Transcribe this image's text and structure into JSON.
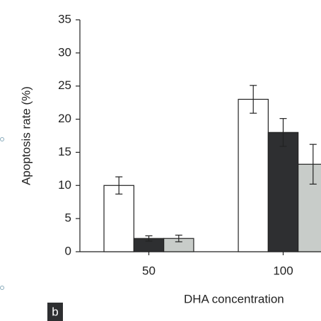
{
  "chart_data": {
    "type": "bar",
    "y_label": "Apoptosis rate (%)",
    "x_label": "DHA concentration",
    "panel_label": "b",
    "categories": [
      "50",
      "100"
    ],
    "series": [
      {
        "color": "#ffffff",
        "values": [
          10,
          23
        ],
        "errors": [
          1.3,
          2.1
        ]
      },
      {
        "color": "#2e2f31",
        "values": [
          2,
          18
        ],
        "errors": [
          0.4,
          2.1
        ]
      },
      {
        "color": "#c8ccc9",
        "values": [
          2,
          13.2
        ],
        "errors": [
          0.5,
          3
        ]
      }
    ],
    "ylim": [
      0,
      35
    ],
    "yticks": [
      0,
      5,
      10,
      15,
      20,
      25,
      30,
      35
    ]
  }
}
